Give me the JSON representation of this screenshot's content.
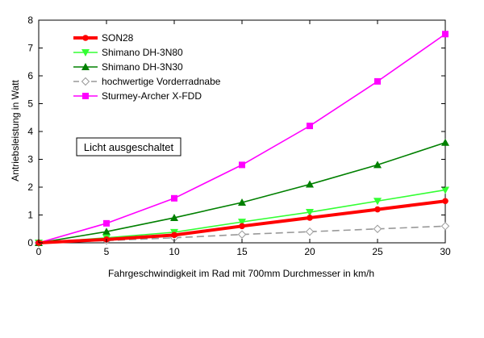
{
  "chart_data": {
    "type": "line",
    "xlabel": "Fahrgeschwindigkeit im Rad mit 700mm Durchmesser in km/h",
    "ylabel": "Antriebsleistung in Watt",
    "xlim": [
      0,
      30
    ],
    "ylim": [
      0,
      8
    ],
    "xticks": [
      0,
      5,
      10,
      15,
      20,
      25,
      30
    ],
    "yticks": [
      0,
      1,
      2,
      3,
      4,
      5,
      6,
      7,
      8
    ],
    "grid": false,
    "legend_position": "top-left",
    "x": [
      0,
      5,
      10,
      15,
      20,
      25,
      30
    ],
    "series": [
      {
        "name": "SON28",
        "values": [
          0,
          0.12,
          0.28,
          0.6,
          0.9,
          1.2,
          1.5
        ],
        "color": "#ff0000",
        "marker": "circle",
        "dash": "solid",
        "width": "thick"
      },
      {
        "name": "Shimano DH-3N80",
        "values": [
          0,
          0.18,
          0.38,
          0.75,
          1.1,
          1.5,
          1.9
        ],
        "color": "#33ff33",
        "marker": "triangle-down",
        "dash": "solid",
        "width": "normal"
      },
      {
        "name": "Shimano DH-3N30",
        "values": [
          0,
          0.4,
          0.9,
          1.45,
          2.1,
          2.8,
          3.6
        ],
        "color": "#008000",
        "marker": "triangle-up",
        "dash": "solid",
        "width": "normal"
      },
      {
        "name": "hochwertige Vorderradnabe",
        "values": [
          0,
          0.08,
          0.18,
          0.3,
          0.4,
          0.5,
          0.6
        ],
        "color": "#999999",
        "marker": "diamond-open",
        "dash": "dashed",
        "width": "normal"
      },
      {
        "name": "Sturmey-Archer X-FDD",
        "values": [
          0,
          0.7,
          1.6,
          2.8,
          4.2,
          5.8,
          7.5
        ],
        "color": "#ff00ff",
        "marker": "square",
        "dash": "solid",
        "width": "normal"
      }
    ],
    "annotation": "Licht ausgeschaltet"
  }
}
